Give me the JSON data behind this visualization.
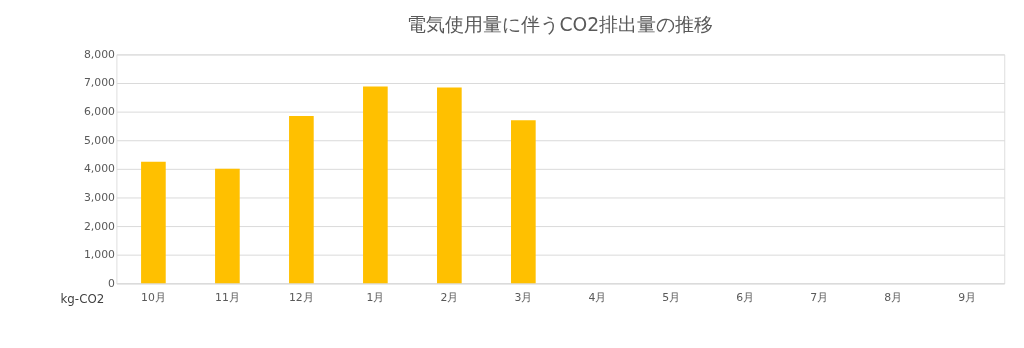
{
  "chart_data": {
    "type": "bar",
    "title": "電気使用量に伴うCO2排出量の推移",
    "ylabel": "kg-CO2",
    "categories": [
      "10月",
      "11月",
      "12月",
      "1月",
      "2月",
      "3月",
      "4月",
      "5月",
      "6月",
      "7月",
      "8月",
      "9月"
    ],
    "series": [
      {
        "color": "#ffc000",
        "values": [
          4250,
          4000,
          5850,
          6880,
          6840,
          5700,
          null,
          null,
          null,
          null,
          null,
          null
        ]
      }
    ],
    "ylim": [
      0,
      8000
    ],
    "yticks": [
      {
        "value": 0,
        "label": "0"
      },
      {
        "value": 1000,
        "label": "1,000"
      },
      {
        "value": 2000,
        "label": "2,000"
      },
      {
        "value": 3000,
        "label": "3,000"
      },
      {
        "value": 4000,
        "label": "4,000"
      },
      {
        "value": 5000,
        "label": "5,000"
      },
      {
        "value": 6000,
        "label": "6,000"
      },
      {
        "value": 7000,
        "label": "7,000"
      },
      {
        "value": 8000,
        "label": "8,000"
      }
    ],
    "grid": "y",
    "legend": false
  }
}
